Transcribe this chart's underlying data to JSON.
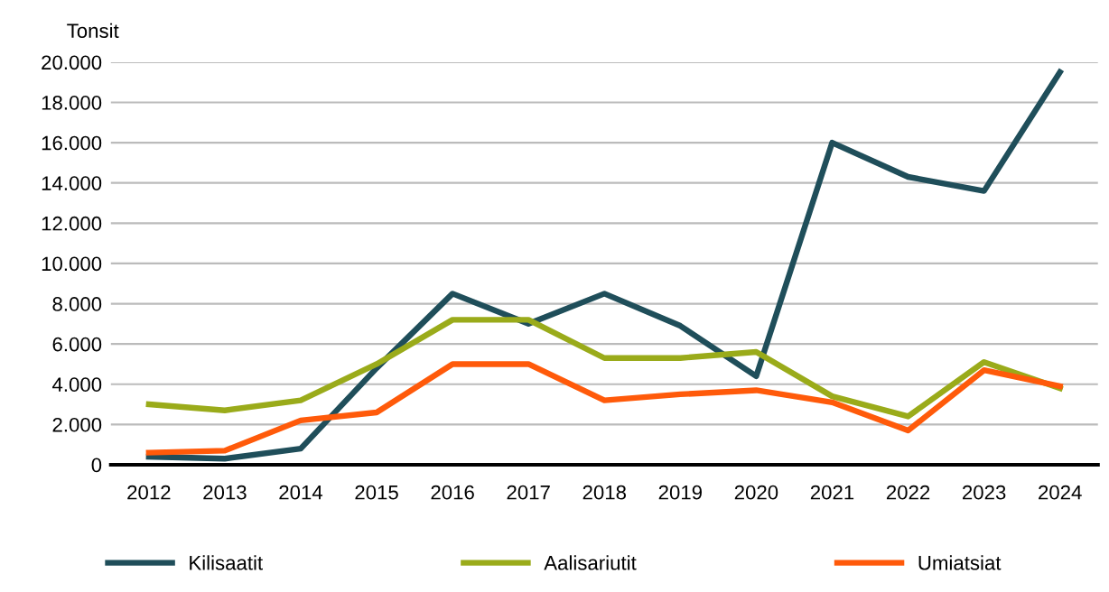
{
  "chart_data": {
    "type": "line",
    "ylabel": "Tonsit",
    "categories": [
      "2012",
      "2013",
      "2014",
      "2015",
      "2016",
      "2017",
      "2018",
      "2019",
      "2020",
      "2021",
      "2022",
      "2023",
      "2024"
    ],
    "series": [
      {
        "name": "Kilisaatit",
        "color": "#1f4e5a",
        "values": [
          400,
          300,
          800,
          4800,
          8500,
          7000,
          8500,
          6900,
          4400,
          16000,
          14300,
          13600,
          19500
        ]
      },
      {
        "name": "Aalisariutit",
        "color": "#9aab1a",
        "values": [
          3000,
          2700,
          3200,
          5000,
          7200,
          7200,
          5300,
          5300,
          5600,
          3400,
          2400,
          5100,
          3800
        ]
      },
      {
        "name": "Umiatsiat",
        "color": "#ff5a0a",
        "values": [
          600,
          700,
          2200,
          2600,
          5000,
          5000,
          3200,
          3500,
          3700,
          3100,
          1700,
          4700,
          3900
        ]
      }
    ],
    "ylim": [
      0,
      20000
    ],
    "yticks": [
      0,
      {
        "value": 2000,
        "label": "2.000"
      },
      {
        "value": 4000,
        "label": "4.000"
      },
      {
        "value": 6000,
        "label": "6.000"
      },
      {
        "value": 8000,
        "label": "8.000"
      },
      {
        "value": 10000,
        "label": "10.000"
      },
      {
        "value": 12000,
        "label": "12.000"
      },
      {
        "value": 14000,
        "label": "14.000"
      },
      {
        "value": 16000,
        "label": "16.000"
      },
      {
        "value": 18000,
        "label": "18.000"
      },
      {
        "value": 20000,
        "label": "20.000"
      }
    ],
    "grid": "y",
    "legend": "bottom",
    "marker": "none",
    "line_style": "solid"
  }
}
